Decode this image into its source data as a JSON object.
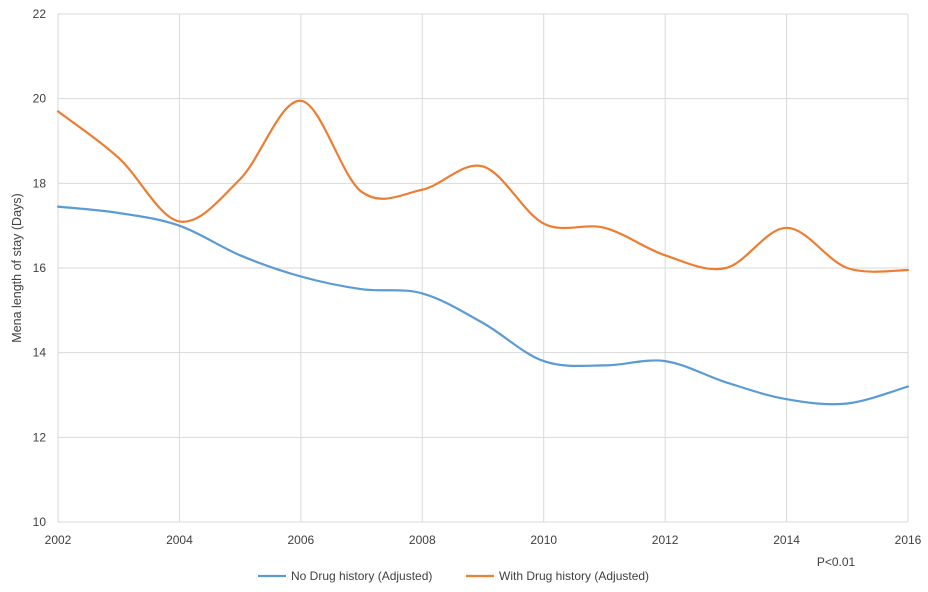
{
  "chart_data": {
    "type": "line",
    "title": "",
    "xlabel": "",
    "ylabel": "Mena length of stay (Days)",
    "x": [
      2002,
      2003,
      2004,
      2005,
      2006,
      2007,
      2008,
      2009,
      2010,
      2011,
      2012,
      2013,
      2014,
      2015,
      2016
    ],
    "xticks": [
      "2002",
      "2004",
      "2006",
      "2008",
      "2010",
      "2012",
      "2014",
      "2016"
    ],
    "yticks": [
      "10",
      "12",
      "14",
      "16",
      "18",
      "20",
      "22"
    ],
    "xlim": [
      2002,
      2016
    ],
    "ylim": [
      10,
      22
    ],
    "grid": true,
    "legend_position": "bottom",
    "annotation": "P<0.01",
    "series": [
      {
        "name": "No Drug history (Adjusted)",
        "color": "#5b9bd5",
        "values": [
          17.45,
          17.3,
          17.0,
          16.3,
          15.8,
          15.5,
          15.4,
          14.7,
          13.8,
          13.7,
          13.8,
          13.3,
          12.9,
          12.8,
          13.2
        ]
      },
      {
        "name": "With Drug history (Adjusted)",
        "color": "#ed7d31",
        "values": [
          19.7,
          18.6,
          17.1,
          18.1,
          19.95,
          17.8,
          17.85,
          18.4,
          17.05,
          16.95,
          16.3,
          16.0,
          16.95,
          16.0,
          15.95
        ]
      }
    ]
  }
}
